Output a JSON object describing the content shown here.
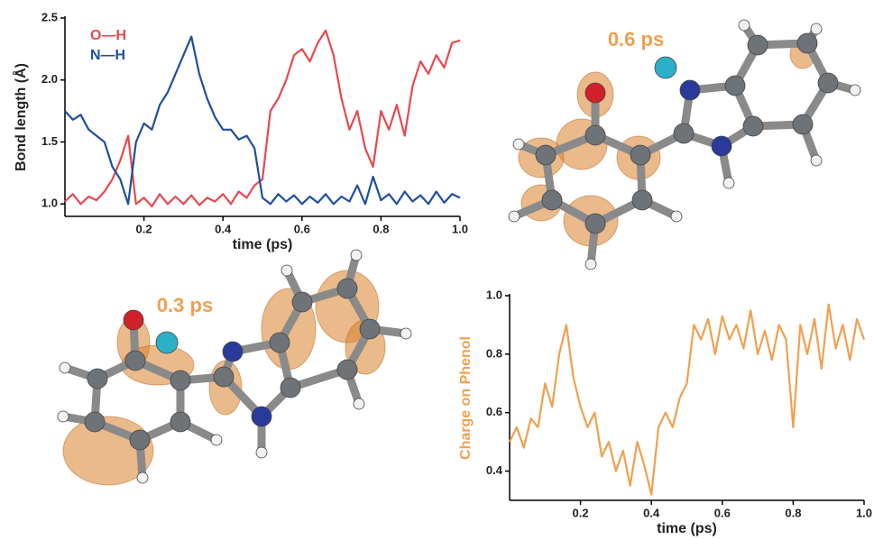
{
  "chart_data": [
    {
      "type": "line",
      "y_label": "Bond length (Å)",
      "x_label": "time (ps)",
      "x": [
        0,
        0.02,
        0.04,
        0.06,
        0.08,
        0.1,
        0.12,
        0.14,
        0.16,
        0.18,
        0.2,
        0.22,
        0.24,
        0.26,
        0.28,
        0.3,
        0.32,
        0.34,
        0.36,
        0.38,
        0.4,
        0.42,
        0.44,
        0.46,
        0.48,
        0.5,
        0.52,
        0.54,
        0.56,
        0.58,
        0.6,
        0.62,
        0.64,
        0.66,
        0.68,
        0.7,
        0.72,
        0.74,
        0.76,
        0.78,
        0.8,
        0.82,
        0.84,
        0.86,
        0.88,
        0.9,
        0.92,
        0.94,
        0.96,
        0.98,
        1.0
      ],
      "series": [
        {
          "name": "O—H",
          "color": "#e8484f",
          "values": [
            1.02,
            1.08,
            1.0,
            1.06,
            1.03,
            1.1,
            1.2,
            1.35,
            1.55,
            1.0,
            1.05,
            0.98,
            1.08,
            1.0,
            1.06,
            1.0,
            1.07,
            0.99,
            1.05,
            1.02,
            1.08,
            1.0,
            1.1,
            1.05,
            1.15,
            1.2,
            1.75,
            1.85,
            2.0,
            2.2,
            2.25,
            2.15,
            2.3,
            2.4,
            2.2,
            1.85,
            1.6,
            1.75,
            1.45,
            1.3,
            1.75,
            1.6,
            1.8,
            1.55,
            1.95,
            2.15,
            2.05,
            2.2,
            2.1,
            2.3,
            2.32
          ]
        },
        {
          "name": "N—H",
          "color": "#1f4fa0",
          "values": [
            1.75,
            1.68,
            1.72,
            1.6,
            1.55,
            1.5,
            1.3,
            1.2,
            1.0,
            1.5,
            1.65,
            1.6,
            1.8,
            1.9,
            2.05,
            2.2,
            2.35,
            2.05,
            1.85,
            1.7,
            1.6,
            1.6,
            1.52,
            1.55,
            1.45,
            1.05,
            1.0,
            1.08,
            1.02,
            1.07,
            1.0,
            1.06,
            1.01,
            1.08,
            1.0,
            1.06,
            1.02,
            1.15,
            1.0,
            1.22,
            1.03,
            1.08,
            1.0,
            1.1,
            1.02,
            1.07,
            1.0,
            1.1,
            1.01,
            1.08,
            1.05
          ]
        }
      ],
      "xlim": [
        0,
        1
      ],
      "ylim": [
        0.9,
        2.5
      ],
      "xticks": [
        0.2,
        0.4,
        0.6,
        0.8,
        {
          "value": 1,
          "label": "1.0"
        }
      ],
      "yticks": [
        {
          "value": 1,
          "label": "1.0"
        },
        1.5,
        {
          "value": 2,
          "label": "2.0"
        },
        2.5
      ]
    },
    {
      "type": "line",
      "y_label": "Charge on Phenol",
      "x_label": "time (ps)",
      "x": [
        0,
        0.02,
        0.04,
        0.06,
        0.08,
        0.1,
        0.12,
        0.14,
        0.16,
        0.18,
        0.2,
        0.22,
        0.24,
        0.26,
        0.28,
        0.3,
        0.32,
        0.34,
        0.36,
        0.38,
        0.4,
        0.42,
        0.44,
        0.46,
        0.48,
        0.5,
        0.52,
        0.54,
        0.56,
        0.58,
        0.6,
        0.62,
        0.64,
        0.66,
        0.68,
        0.7,
        0.72,
        0.74,
        0.76,
        0.78,
        0.8,
        0.82,
        0.84,
        0.86,
        0.88,
        0.9,
        0.92,
        0.94,
        0.96,
        0.98,
        1.0
      ],
      "series": [
        {
          "name": "Charge on Phenol",
          "color": "#f0a050",
          "values": [
            0.5,
            0.55,
            0.48,
            0.58,
            0.55,
            0.7,
            0.62,
            0.8,
            0.9,
            0.72,
            0.62,
            0.55,
            0.6,
            0.45,
            0.5,
            0.4,
            0.47,
            0.35,
            0.5,
            0.42,
            0.32,
            0.55,
            0.6,
            0.55,
            0.65,
            0.7,
            0.9,
            0.85,
            0.92,
            0.8,
            0.93,
            0.85,
            0.9,
            0.82,
            0.95,
            0.8,
            0.88,
            0.78,
            0.9,
            0.85,
            0.55,
            0.9,
            0.8,
            0.92,
            0.75,
            0.97,
            0.82,
            0.9,
            0.78,
            0.92,
            0.85
          ]
        }
      ],
      "xlim": [
        0,
        1
      ],
      "ylim": [
        0.3,
        1.0
      ],
      "xticks": [
        0.2,
        0.4,
        0.6,
        0.8,
        {
          "value": 1,
          "label": "1.0"
        }
      ],
      "yticks": [
        0.4,
        0.6,
        0.8,
        {
          "value": 1,
          "label": "1.0"
        }
      ]
    }
  ],
  "molecule_labels": [
    "0.6 ps",
    "0.3 ps"
  ]
}
